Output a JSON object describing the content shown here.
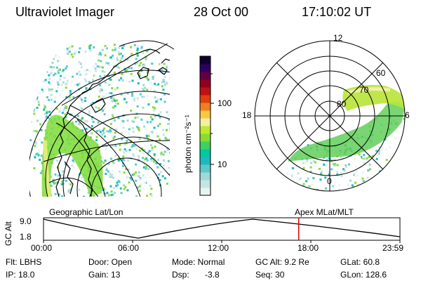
{
  "header": {
    "title": "Ultraviolet Imager",
    "date": "28 Oct 00",
    "time": "17:10:02 UT"
  },
  "colorbar": {
    "unit_label": "photon cm⁻²s⁻¹",
    "tick_100": "100",
    "tick_10": "10",
    "colors": [
      "#e8f4f4",
      "#c6e4e4",
      "#9ed8d8",
      "#5cc8c8",
      "#20b8c0",
      "#00c8a0",
      "#40d060",
      "#88dc30",
      "#c0e830",
      "#f0f0a0",
      "#f8c840",
      "#f08020",
      "#e04010",
      "#c01010",
      "#900020",
      "#600040",
      "#300060",
      "#100030"
    ]
  },
  "left_panel": {
    "label": "Geographic Lat/Lon"
  },
  "right_panel": {
    "label": "Apex MLat/MLT",
    "mlt_labels": {
      "top": "12",
      "bottom": "0",
      "left": "18",
      "right": "6"
    },
    "lat_labels": [
      "80",
      "70",
      "60"
    ]
  },
  "timeline": {
    "axis_label": "GC Alt",
    "y_top": "9.0",
    "y_bottom": "1.8",
    "ticks": [
      "00:00",
      "06:00",
      "12:00",
      "18:00",
      "23:59"
    ],
    "current_time_fraction": 0.716,
    "marker_color": "#e00000"
  },
  "info": {
    "flt": "Flt: LBHS",
    "ip": "IP: 18.0",
    "door": "Door: Open",
    "gain": "Gain: 13",
    "mode": "Mode: Normal",
    "dsp_label": "Dsp:",
    "dsp_value": "-3.8",
    "gc_alt": "GC Alt: 9.2 Re",
    "seq": "Seq: 30",
    "glat": "GLat:  60.8",
    "glon": "GLon: 128.6"
  }
}
